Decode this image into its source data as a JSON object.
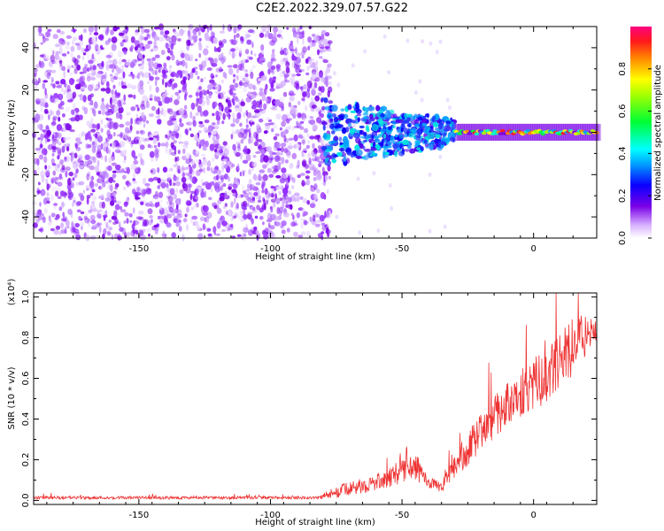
{
  "title": "C2E2.2022.329.07.57.G22",
  "colors": {
    "spectrogram_purple": "#7a00e6",
    "snr_line": "#ee3333",
    "axis": "#000000"
  },
  "chart_data": [
    {
      "type": "heatmap",
      "name": "spectrogram",
      "xlabel": "Height of straight line (km)",
      "ylabel": "Frequency (Hz)",
      "xlim": [
        -190,
        24
      ],
      "ylim": [
        -50,
        50
      ],
      "xticks": [
        -150,
        -100,
        -50,
        0
      ],
      "xtick_labels": [
        "-150",
        "-100",
        "-50",
        "0"
      ],
      "yticks": [
        -40,
        -20,
        0,
        20,
        40
      ],
      "ytick_labels": [
        "-40",
        "-20",
        "0",
        "20",
        "40"
      ],
      "colorbar": {
        "label": "Normalized spectral amplitude",
        "range": [
          0,
          1
        ],
        "ticks": [
          0.0,
          0.2,
          0.4,
          0.6,
          0.8
        ],
        "tick_labels": [
          "0.0",
          "0.2",
          "0.4",
          "0.6",
          "0.8"
        ]
      },
      "features": {
        "noise_region_x": [
          -190,
          -80
        ],
        "signal_start_x": -80,
        "signal_center_freq_hz": 0,
        "signal_band_hz": [
          -5,
          5
        ],
        "grid": false
      }
    },
    {
      "type": "line",
      "name": "snr",
      "xlabel": "Height of straight line (km)",
      "ylabel": "SNR (10 * v/v)",
      "scale_label": "(x10⁴)",
      "xlim": [
        -190,
        24
      ],
      "ylim": [
        -0.02,
        1.02
      ],
      "xticks": [
        -150,
        -100,
        -50,
        0
      ],
      "xtick_labels": [
        "-150",
        "-100",
        "-50",
        "0"
      ],
      "yticks": [
        0.0,
        0.2,
        0.4,
        0.6,
        0.8,
        1.0
      ],
      "ytick_labels": [
        "0.0",
        "0.2",
        "0.4",
        "0.6",
        "0.8",
        "1.0"
      ],
      "envelope": {
        "x": [
          -190,
          -150,
          -100,
          -82,
          -75,
          -60,
          -50,
          -45,
          -40,
          -35,
          -30,
          -25,
          -20,
          -15,
          -10,
          -5,
          0,
          5,
          10,
          15,
          20,
          24
        ],
        "base": [
          0.01,
          0.01,
          0.01,
          0.01,
          0.03,
          0.07,
          0.12,
          0.14,
          0.08,
          0.05,
          0.14,
          0.22,
          0.3,
          0.37,
          0.43,
          0.48,
          0.52,
          0.56,
          0.62,
          0.7,
          0.78,
          0.82
        ],
        "amp": [
          0.015,
          0.015,
          0.015,
          0.015,
          0.06,
          0.08,
          0.12,
          0.14,
          0.06,
          0.05,
          0.12,
          0.16,
          0.18,
          0.22,
          0.22,
          0.24,
          0.26,
          0.26,
          0.28,
          0.28,
          0.22,
          0.1
        ]
      },
      "grid": false
    }
  ]
}
